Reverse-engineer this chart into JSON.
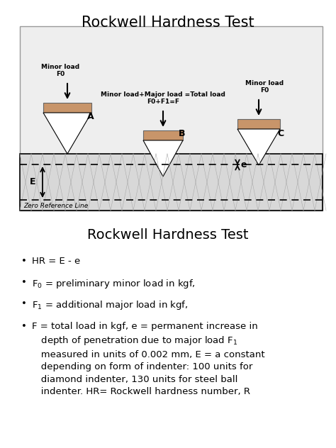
{
  "title_top": "Rockwell Hardness Test",
  "title_bottom": "Rockwell Hardness Test",
  "bg_color": "#ffffff",
  "top_label_left": "Minor load\nF0",
  "top_label_mid": "Minor load+Major load =Total load\nF0+F1=F",
  "top_label_right": "Minor load\nF0",
  "zero_ref": "Zero Reference Line",
  "indenter_color": "#c8956a",
  "material_fill": "#d8d8d8",
  "diagram_fill": "#eeeeee",
  "label_A": "A",
  "label_B": "B",
  "label_C": "C",
  "label_E": "E",
  "label_e": "e"
}
